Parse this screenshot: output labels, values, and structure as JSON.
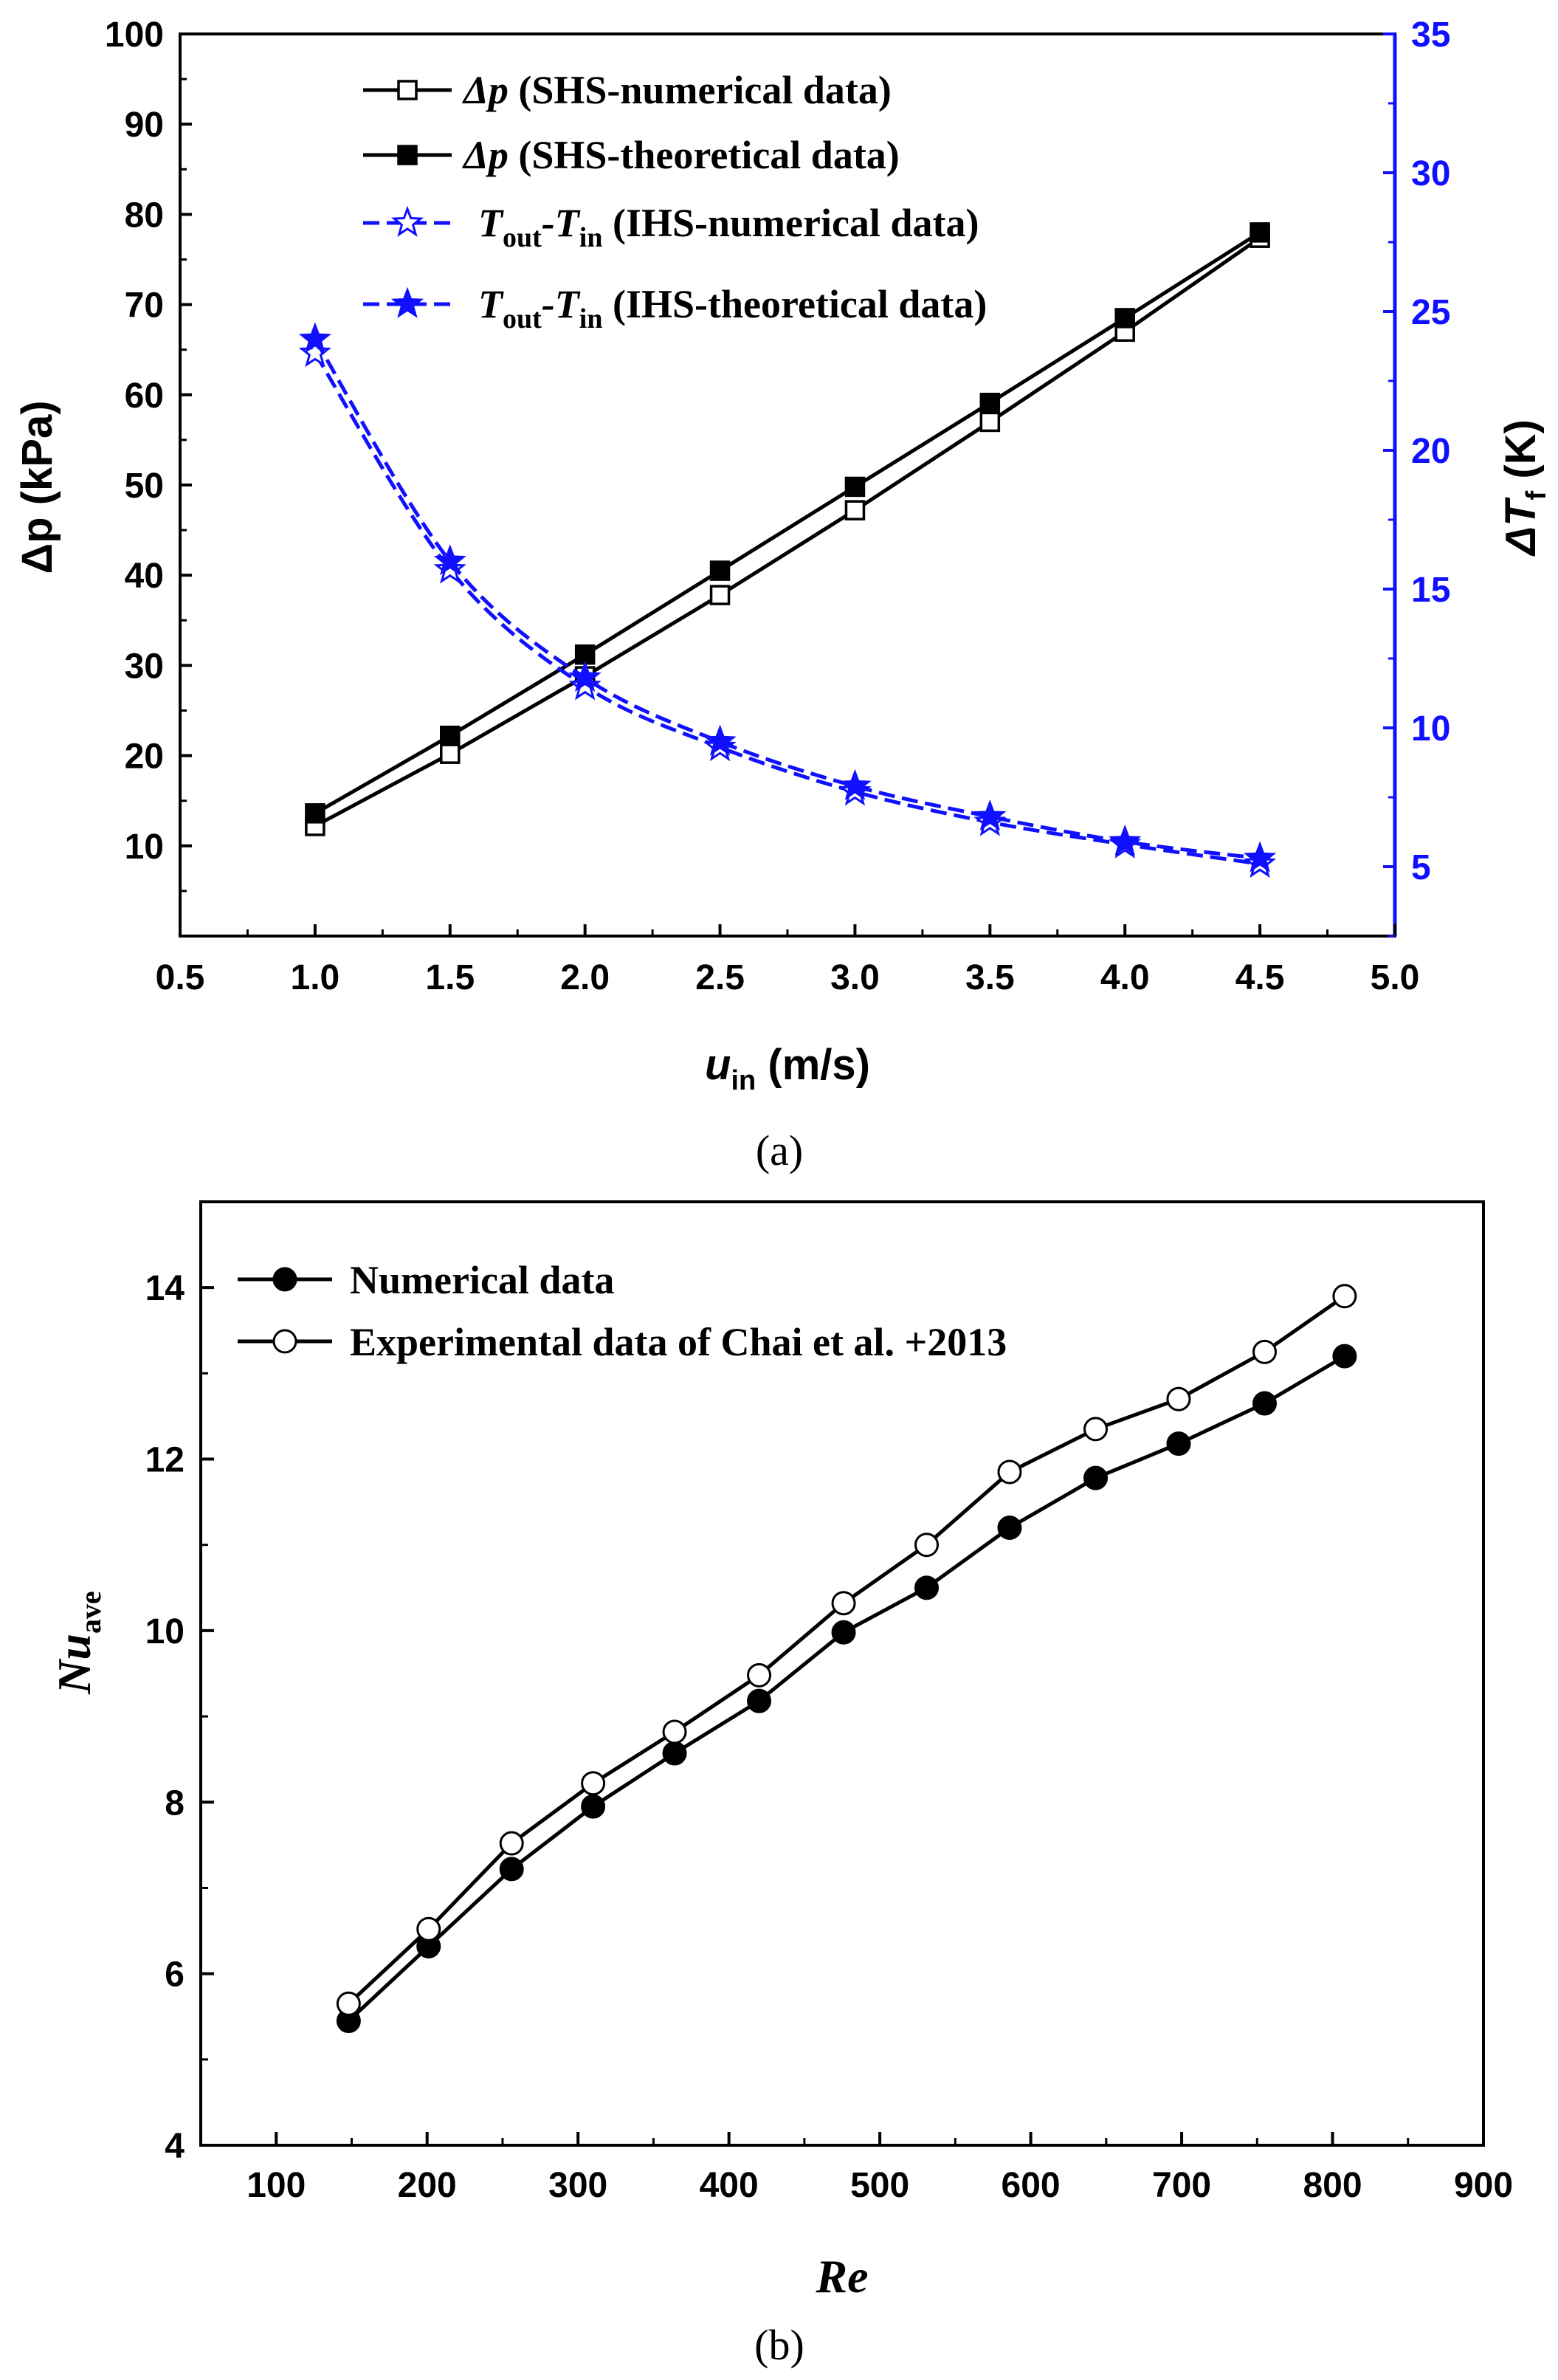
{
  "chart_data": [
    {
      "id": "a",
      "type": "line",
      "caption": "(a)",
      "x": [
        1.0,
        1.5,
        2.0,
        2.5,
        3.0,
        3.5,
        4.0,
        4.5
      ],
      "xlabel_main": "u",
      "xlabel_sub": "in",
      "xlabel_unit": " (m/s)",
      "xlim": [
        0.5,
        5.0
      ],
      "xticks": [
        "0.5",
        "1.0",
        "1.5",
        "2.0",
        "2.5",
        "3.0",
        "3.5",
        "4.0",
        "4.5",
        "5.0"
      ],
      "ylabel": "Δp (kPa)",
      "ylim": [
        0,
        100
      ],
      "yticks": [
        "10",
        "20",
        "30",
        "40",
        "50",
        "60",
        "70",
        "80",
        "90",
        "100"
      ],
      "y2label_main": "ΔT",
      "y2label_sub": "f",
      "y2label_unit": " (K)",
      "y2lim": [
        2.5,
        35
      ],
      "y2ticks": [
        "5",
        "10",
        "15",
        "20",
        "25",
        "30",
        "35"
      ],
      "series": [
        {
          "name": "Δp (SHS-numerical data)",
          "sym": "Δp",
          "desc": " (SHS-numerical data)",
          "axis": "left",
          "color": "#000000",
          "marker": "open-square",
          "dashed": false,
          "values": [
            12.2,
            20.2,
            28.8,
            37.8,
            47.2,
            57.0,
            67.0,
            77.4
          ]
        },
        {
          "name": "Δp (SHS-theoretical data)",
          "sym": "Δp",
          "desc": " (SHS-theoretical data)",
          "axis": "left",
          "color": "#000000",
          "marker": "filled-square",
          "dashed": false,
          "values": [
            13.6,
            22.2,
            31.2,
            40.5,
            49.8,
            59.1,
            68.5,
            78.0
          ]
        },
        {
          "name": "Tout-Tin (IHS-numerical data)",
          "sym": "T",
          "sub1": "out",
          "mid": "-T",
          "sub2": "in",
          "desc": " (IHS-numerical data)",
          "axis": "right",
          "color": "#1010ff",
          "marker": "open-star",
          "dashed": true,
          "values": [
            23.5,
            15.7,
            11.5,
            9.3,
            7.7,
            6.6,
            5.8,
            5.1
          ]
        },
        {
          "name": "Tout-Tin (IHS-theoretical data)",
          "sym": "T",
          "sub1": "out",
          "mid": "-T",
          "sub2": "in",
          "desc": " (IHS-theoretical data)",
          "axis": "right",
          "color": "#1010ff",
          "marker": "filled-star",
          "dashed": true,
          "values": [
            24.0,
            16.0,
            11.8,
            9.5,
            7.9,
            6.8,
            5.9,
            5.3
          ]
        }
      ]
    },
    {
      "id": "b",
      "type": "line",
      "caption": "(b)",
      "xlabel": "Re",
      "xlim": [
        50,
        900
      ],
      "xticks": [
        "100",
        "200",
        "300",
        "400",
        "500",
        "600",
        "700",
        "800",
        "900"
      ],
      "ylabel_main": "Nu",
      "ylabel_sub": "ave",
      "ylim": [
        4,
        15
      ],
      "yticks": [
        "4",
        "6",
        "8",
        "10",
        "12",
        "14"
      ],
      "series": [
        {
          "name": "Numerical data",
          "color": "#000000",
          "marker": "filled-circle",
          "x": [
            148,
            201,
            256,
            310,
            364,
            420,
            476,
            531,
            586,
            643,
            698,
            755,
            808
          ],
          "values": [
            5.45,
            6.32,
            7.22,
            7.95,
            8.57,
            9.18,
            9.98,
            10.5,
            11.2,
            11.78,
            12.18,
            12.65,
            13.2
          ]
        },
        {
          "name": "Experimental data of Chai et al. +2013",
          "color": "#000000",
          "marker": "open-circle",
          "x": [
            148,
            201,
            256,
            310,
            364,
            420,
            476,
            531,
            586,
            643,
            698,
            755,
            808
          ],
          "values": [
            5.65,
            6.52,
            7.52,
            8.22,
            8.82,
            9.48,
            10.32,
            11.0,
            11.85,
            12.35,
            12.7,
            13.25,
            13.9
          ]
        }
      ]
    }
  ]
}
